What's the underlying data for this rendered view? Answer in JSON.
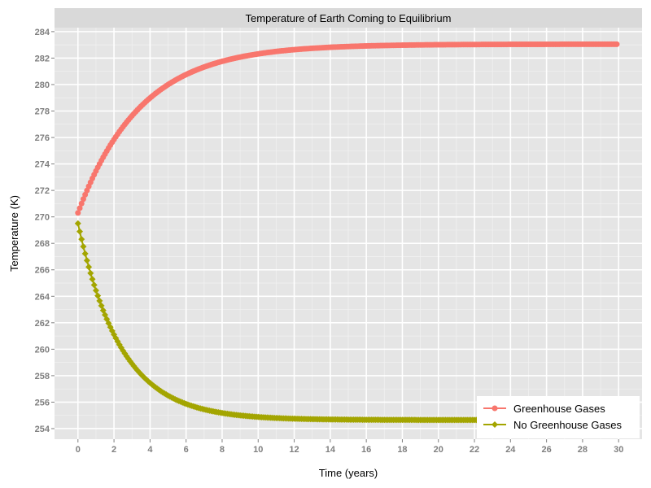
{
  "chart_data": {
    "type": "line",
    "title": "Temperature of Earth Coming to Equilibrium",
    "xlabel": "Time (years)",
    "ylabel": "Temperature (K)",
    "xlim": [
      -1.3,
      31.3
    ],
    "ylim": [
      253.2,
      284.3
    ],
    "x_ticks": [
      0,
      2,
      4,
      6,
      8,
      10,
      12,
      14,
      16,
      18,
      20,
      22,
      24,
      26,
      28,
      30
    ],
    "y_ticks": [
      254,
      256,
      258,
      260,
      262,
      264,
      266,
      268,
      270,
      272,
      274,
      276,
      278,
      280,
      282,
      284
    ],
    "grid": true,
    "legend_position": "bottom-right",
    "x_range": [
      0,
      29.9
    ],
    "x_step": 0.1,
    "series": [
      {
        "name": "Greenhouse Gases",
        "color": "#F8766D",
        "marker": "circle",
        "start": 270.3,
        "equilibrium": 283.05,
        "tau_years": 3.5
      },
      {
        "name": "No Greenhouse Gases",
        "color": "#A3A500",
        "marker": "diamond",
        "start": 269.5,
        "equilibrium": 254.65,
        "tau_years": 2.4
      }
    ]
  }
}
